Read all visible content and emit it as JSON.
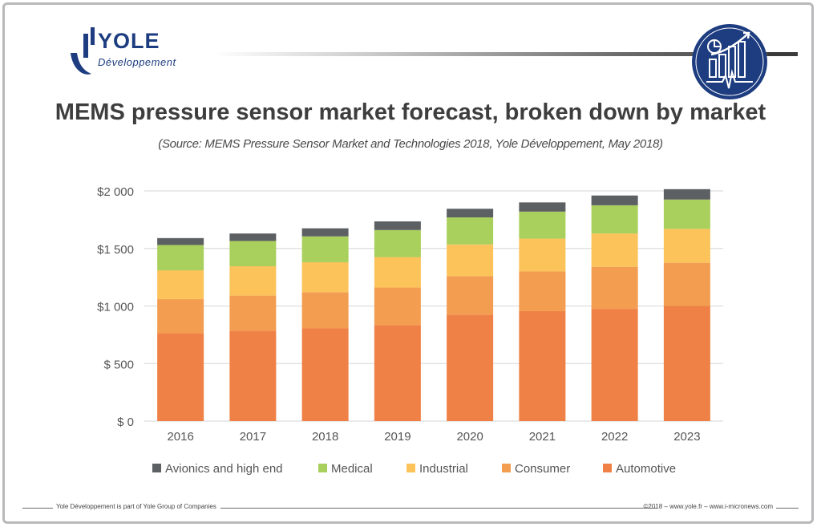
{
  "brand": {
    "name": "YOLE",
    "sub": "Développement"
  },
  "title": "MEMS pressure sensor market forecast, broken down by market",
  "subtitle": "(Source: MEMS Pressure Sensor Market and Technologies 2018, Yole Développement, May 2018)",
  "footer": {
    "left": "Yole Développement is part of Yole Group of Companies",
    "right": "©2018 – www.yole.fr – www.i-micronews.com"
  },
  "colors": {
    "brand_navy": "#1d3d80",
    "Avionics and high end": "#5d6063",
    "Medical": "#a9cf5d",
    "Industrial": "#fcc35a",
    "Consumer": "#f39d50",
    "Automotive": "#ef8146"
  },
  "chart_data": {
    "type": "bar",
    "stacked": true,
    "categories": [
      "2016",
      "2017",
      "2018",
      "2019",
      "2020",
      "2021",
      "2022",
      "2023"
    ],
    "series": [
      {
        "name": "Automotive",
        "values": [
          765,
          785,
          805,
          835,
          925,
          955,
          975,
          1000
        ]
      },
      {
        "name": "Consumer",
        "values": [
          295,
          305,
          315,
          325,
          335,
          345,
          365,
          375
        ]
      },
      {
        "name": "Industrial",
        "values": [
          250,
          255,
          260,
          265,
          275,
          285,
          290,
          295
        ]
      },
      {
        "name": "Medical",
        "values": [
          220,
          220,
          225,
          235,
          235,
          235,
          245,
          255
        ]
      },
      {
        "name": "Avionics and high end",
        "values": [
          60,
          65,
          70,
          75,
          75,
          80,
          85,
          90
        ]
      }
    ],
    "legend_order": [
      "Avionics and high end",
      "Medical",
      "Industrial",
      "Consumer",
      "Automotive"
    ],
    "legend_position": "bottom",
    "ylim": [
      0,
      2000
    ],
    "yticks": [
      0,
      500,
      1000,
      1500,
      2000
    ],
    "ytick_labels": [
      "$ 0",
      "$ 500",
      "$1 000",
      "$1 500",
      "$2 000"
    ],
    "grid": true
  }
}
